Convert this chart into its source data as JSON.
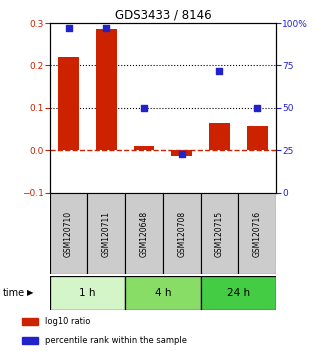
{
  "title": "GDS3433 / 8146",
  "samples": [
    "GSM120710",
    "GSM120711",
    "GSM120648",
    "GSM120708",
    "GSM120715",
    "GSM120716"
  ],
  "log10_ratio": [
    0.22,
    0.285,
    0.01,
    -0.013,
    0.065,
    0.057
  ],
  "percentile_rank": [
    97,
    97,
    50,
    23,
    72,
    50
  ],
  "bar_color": "#cc2200",
  "dot_color": "#2222cc",
  "left_ylim": [
    -0.1,
    0.3
  ],
  "right_ylim": [
    0,
    100
  ],
  "left_yticks": [
    -0.1,
    0.0,
    0.1,
    0.2,
    0.3
  ],
  "right_yticks": [
    0,
    25,
    50,
    75,
    100
  ],
  "right_yticklabels": [
    "0",
    "25",
    "50",
    "75",
    "100%"
  ],
  "hline_dotted": [
    0.1,
    0.2
  ],
  "hline_zero_color": "#cc2200",
  "time_groups": [
    {
      "label": "1 h",
      "start": 0,
      "end": 2,
      "color": "#d4f5c8"
    },
    {
      "label": "4 h",
      "start": 2,
      "end": 4,
      "color": "#88dd66"
    },
    {
      "label": "24 h",
      "start": 4,
      "end": 6,
      "color": "#44cc44"
    }
  ],
  "label_box_color": "#cccccc",
  "legend_items": [
    {
      "label": "log10 ratio",
      "color": "#cc2200"
    },
    {
      "label": "percentile rank within the sample",
      "color": "#2222cc"
    }
  ],
  "xlabel_time": "time",
  "bar_width": 0.55
}
